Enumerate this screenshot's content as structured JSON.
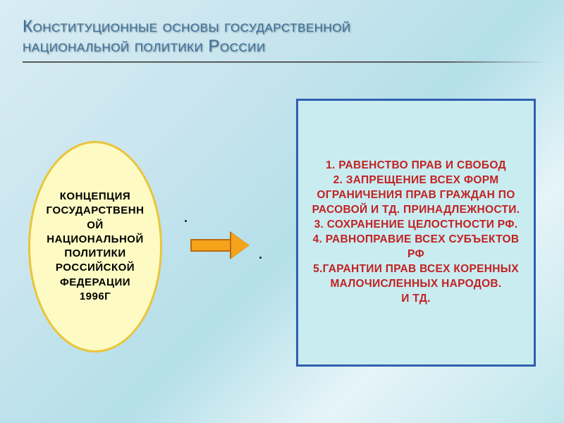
{
  "title": {
    "line1": "Конституционные  основы государственной",
    "line2": "национальной политики   России",
    "color": "#3a6f9a",
    "fontsize": 24
  },
  "ellipse": {
    "text": "КОНЦЕПЦИЯ ГОСУДАРСТВЕННОЙ НАЦИОНАЛЬНОЙ ПОЛИТИКИ РОССИЙСКОЙ ФЕДЕРАЦИИ 1996Г",
    "fill": "#fdfac3",
    "border": "#eac43a",
    "text_color": "#000000",
    "fontsize": 15
  },
  "arrow": {
    "fill": "#f4a31a",
    "border": "#b96a10"
  },
  "rect": {
    "fill": "#c9ecf1",
    "border": "#2f5fb0",
    "text_color": "#c22222",
    "fontsize": 15.5,
    "items": [
      "1.  РАВЕНСТВО ПРАВ И СВОБОД",
      "2.  ЗАПРЕЩЕНИЕ ВСЕХ ФОРМ ОГРАНИЧЕНИЯ ПРАВ ГРАЖДАН ПО РАСОВОЙ И ТД. ПРИНАДЛЕЖНОСТИ.",
      "3.  СОХРАНЕНИЕ ЦЕЛОСТНОСТИ РФ.",
      "4.  РАВНОПРАВИЕ ВСЕХ СУБЪЕКТОВ",
      "РФ",
      "5.ГАРАНТИИ ПРАВ  ВСЕХ КОРЕННЫХ МАЛОЧИСЛЕННЫХ НАРОДОВ.",
      "И ТД."
    ]
  },
  "dots": {
    "color": "#222222"
  },
  "background": {
    "gradient": "linear-gradient(135deg,#d8ecf4,#c9e5ee,#b4dfe9,#e6f4f8,#bfe6ec)"
  }
}
